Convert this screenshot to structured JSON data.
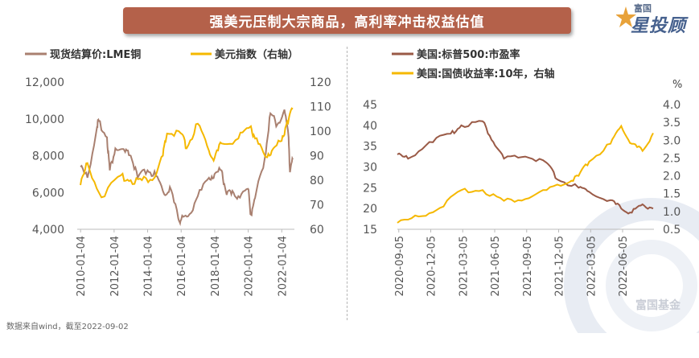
{
  "header": {
    "title": "强美元压制大宗商品，高利率冲击权益估值"
  },
  "brand": {
    "top_text": "富国",
    "main_text": "星投顾"
  },
  "footer": {
    "source": "数据来自wind，截至2022-09-02"
  },
  "watermark": {
    "text": "富国基金"
  },
  "colors": {
    "banner": "#b4614a",
    "brown": "#a98070",
    "brown_dark": "#9a5a46",
    "gold": "#f5b800"
  },
  "chart_data": [
    {
      "type": "line",
      "legend_position": "top",
      "series": [
        {
          "name": "现货结算价:LME铜",
          "axis": "left",
          "x": [
            "2010-01",
            "2010-06",
            "2011-01",
            "2011-02",
            "2011-08",
            "2011-10",
            "2012-02",
            "2012-09",
            "2013-01",
            "2013-06",
            "2014-01",
            "2014-07",
            "2015-01",
            "2015-05",
            "2015-11",
            "2016-01",
            "2016-06",
            "2017-01",
            "2017-09",
            "2018-01",
            "2018-06",
            "2018-09",
            "2019-01",
            "2019-06",
            "2020-01",
            "2020-03",
            "2020-06",
            "2021-01",
            "2021-05",
            "2021-10",
            "2022-03",
            "2022-06",
            "2022-07",
            "2022-09"
          ],
          "values": [
            7400,
            6800,
            9600,
            9900,
            9000,
            7200,
            8400,
            8200,
            8000,
            6800,
            7200,
            6900,
            5900,
            6300,
            4600,
            4500,
            4700,
            5800,
            6800,
            7000,
            7200,
            6100,
            5900,
            5800,
            6200,
            4800,
            5700,
            7900,
            10300,
            9700,
            10500,
            9000,
            7100,
            7800
          ]
        },
        {
          "name": "美元指数（右轴）",
          "axis": "right",
          "x": [
            "2010-01",
            "2010-06",
            "2011-04",
            "2012-06",
            "2013-01",
            "2013-09",
            "2014-06",
            "2014-12",
            "2015-03",
            "2016-01",
            "2016-05",
            "2017-01",
            "2017-09",
            "2018-01",
            "2018-06",
            "2019-06",
            "2020-03",
            "2020-06",
            "2021-01",
            "2021-06",
            "2022-01",
            "2022-05",
            "2022-09"
          ],
          "values": [
            78,
            87,
            73,
            82,
            80,
            80,
            81,
            90,
            99,
            99,
            93,
            103,
            92,
            89,
            95,
            97,
            102,
            97,
            90,
            92,
            96,
            104,
            109
          ]
        }
      ],
      "left_axis": {
        "ylim": [
          4000,
          12000
        ],
        "ticks": [
          "4,000",
          "6,000",
          "8,000",
          "10,000",
          "12,000"
        ]
      },
      "right_axis": {
        "ylim": [
          60,
          120
        ],
        "ticks": [
          "60",
          "70",
          "80",
          "90",
          "100",
          "110",
          "120"
        ]
      },
      "x_ticks": [
        "2010-01-04",
        "2012-01-04",
        "2014-01-04",
        "2016-01-04",
        "2018-01-04",
        "2020-01-04",
        "2022-01-04"
      ]
    },
    {
      "type": "line",
      "legend_position": "top",
      "series": [
        {
          "name": "美国:标普500:市盈率",
          "axis": "left",
          "x": [
            "2020-09",
            "2020-10",
            "2020-12",
            "2021-02",
            "2021-03",
            "2021-05",
            "2021-06",
            "2021-07",
            "2021-09",
            "2021-11",
            "2021-12",
            "2022-02",
            "2022-03",
            "2022-05",
            "2022-06",
            "2022-07",
            "2022-08",
            "2022-09"
          ],
          "values": [
            33,
            32,
            36,
            38,
            40,
            41,
            36,
            32,
            32.5,
            31,
            27,
            25,
            24,
            22,
            20,
            19,
            21,
            20
          ]
        },
        {
          "name": "美国:国债收益率:10年，右轴",
          "axis": "right",
          "x": [
            "2020-09",
            "2020-11",
            "2021-01",
            "2021-03",
            "2021-05",
            "2021-07",
            "2021-09",
            "2021-11",
            "2022-01",
            "2022-02",
            "2022-03",
            "2022-05",
            "2022-06",
            "2022-07",
            "2022-08",
            "2022-09"
          ],
          "values": [
            0.68,
            0.86,
            1.1,
            1.6,
            1.6,
            1.3,
            1.35,
            1.6,
            1.8,
            2.0,
            2.4,
            2.9,
            3.4,
            2.9,
            2.7,
            3.2
          ]
        }
      ],
      "left_axis": {
        "ylim": [
          15,
          45
        ],
        "ticks": [
          "15",
          "20",
          "25",
          "30",
          "35",
          "40",
          "45"
        ]
      },
      "right_axis": {
        "ylim": [
          0.5,
          4.0
        ],
        "ticks": [
          "0.5",
          "1.0",
          "1.5",
          "2.0",
          "2.5",
          "3.0",
          "3.5",
          "4.0"
        ],
        "unit": "%"
      },
      "x_ticks": [
        "2020-09-05",
        "2020-12-05",
        "2021-03-05",
        "2021-06-05",
        "2021-09-05",
        "2021-12-05",
        "2022-03-05",
        "2022-06-05"
      ]
    }
  ]
}
